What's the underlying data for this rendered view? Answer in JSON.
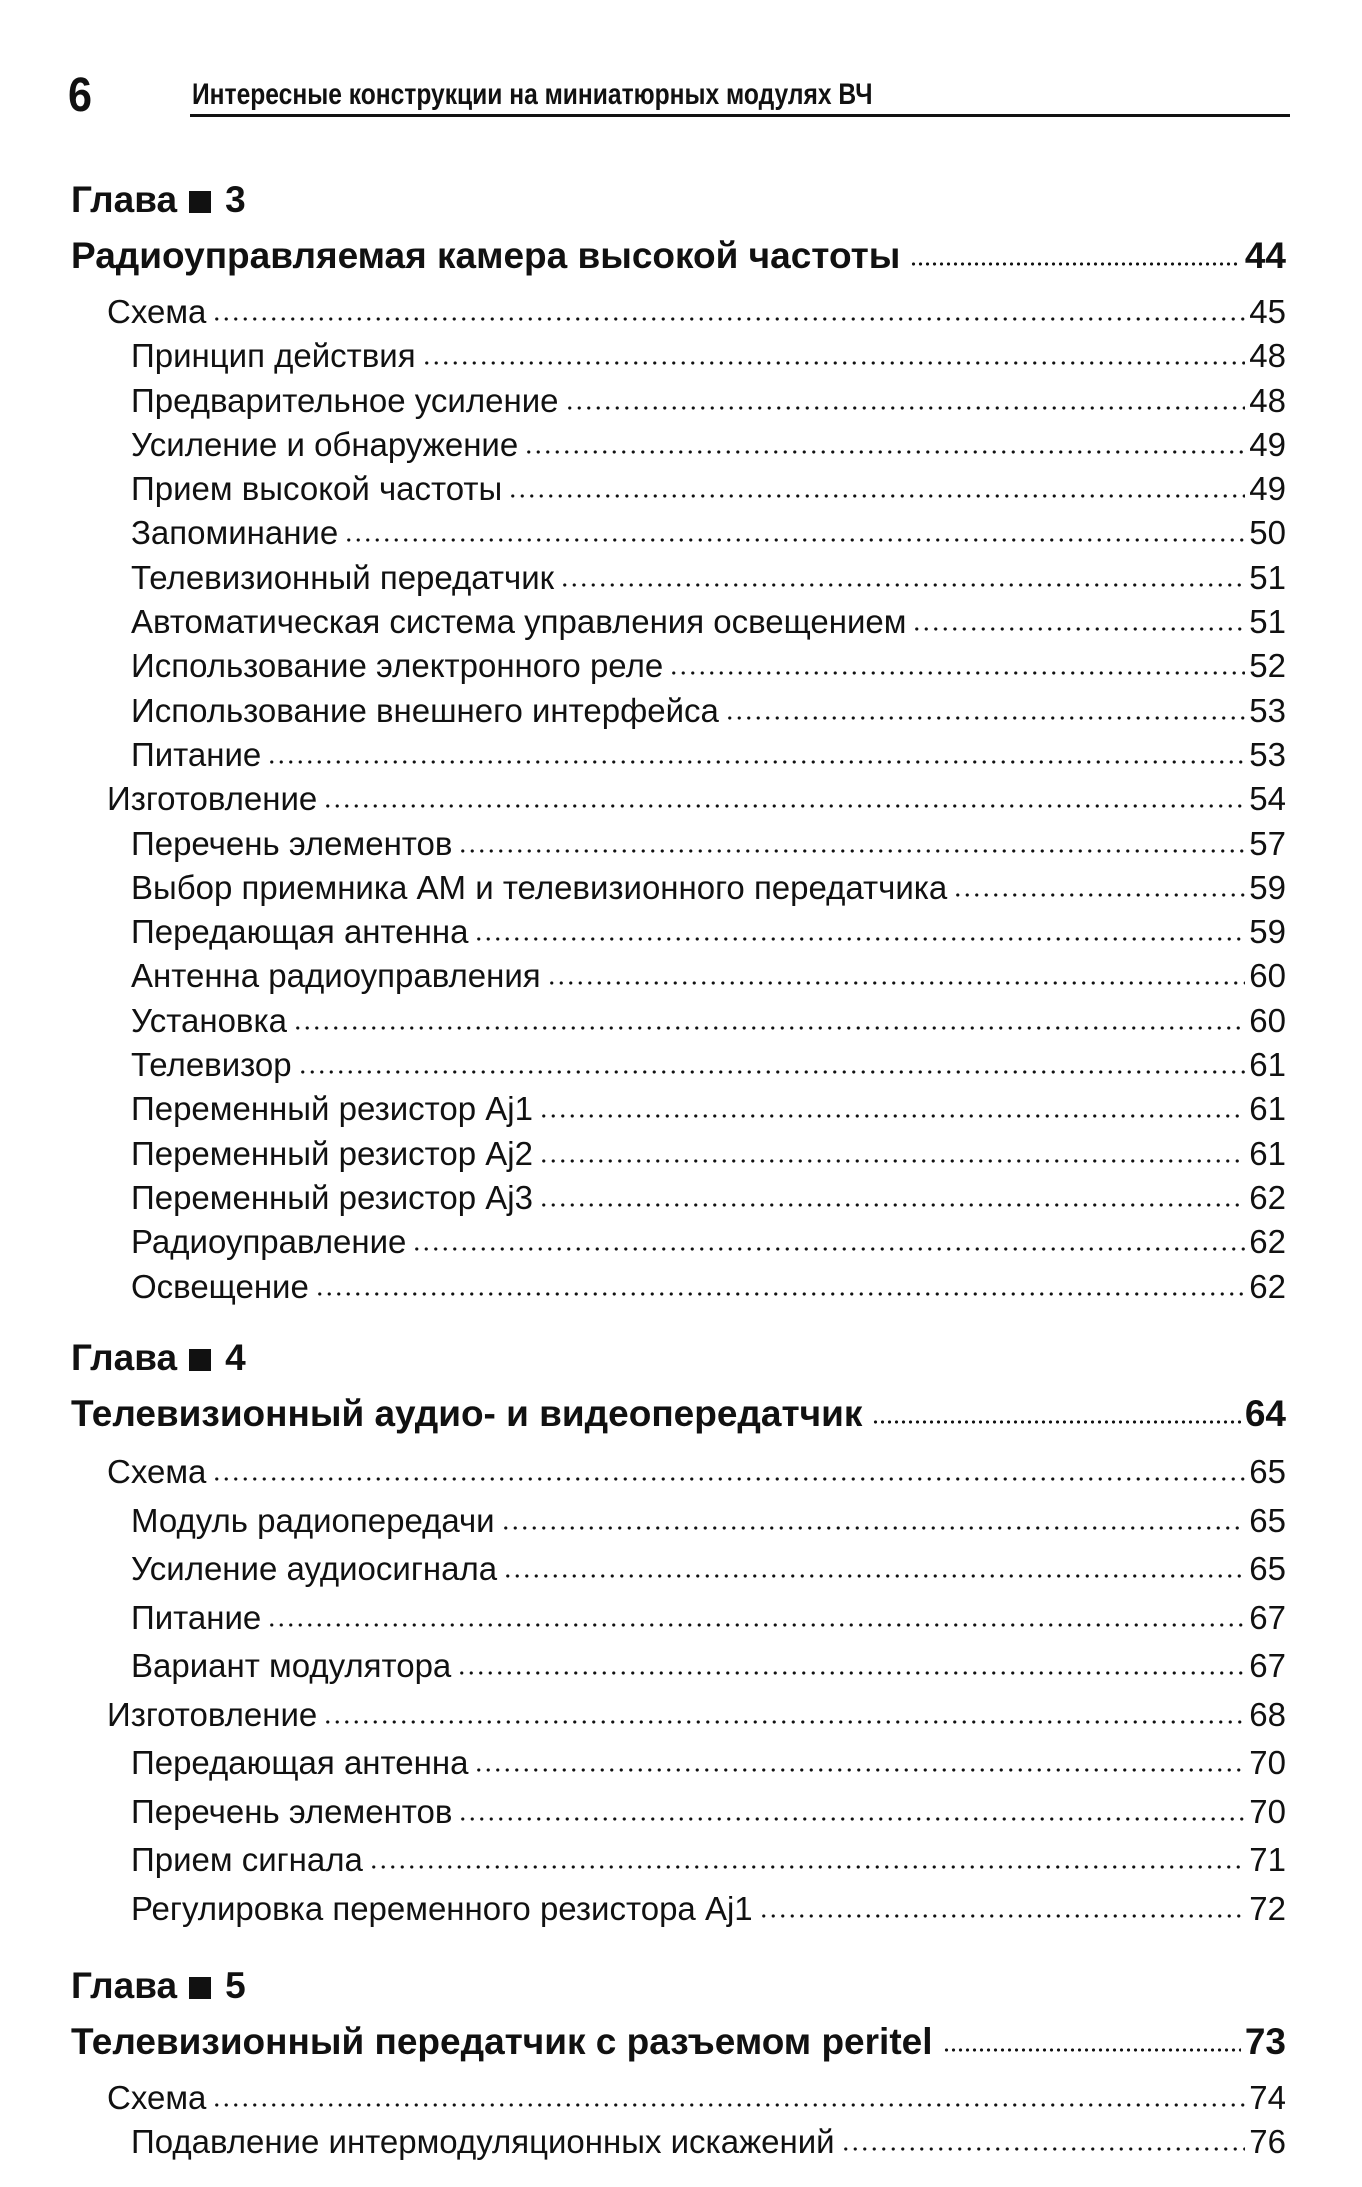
{
  "header": {
    "page_number": "6",
    "running_title": "Интересные конструкции на миниатюрных модулях ВЧ"
  },
  "chapters": [
    {
      "label": "Глава",
      "number": "3",
      "title": "Радиоуправляемая камера высокой частоты",
      "page": "44",
      "entries": [
        {
          "level": 1,
          "text": "Схема",
          "page": "45"
        },
        {
          "level": 2,
          "text": "Принцип действия",
          "page": "48"
        },
        {
          "level": 2,
          "text": "Предварительное усиление",
          "page": "48"
        },
        {
          "level": 2,
          "text": "Усиление и обнаружение",
          "page": "49"
        },
        {
          "level": 2,
          "text": "Прием высокой частоты",
          "page": "49"
        },
        {
          "level": 2,
          "text": "Запоминание",
          "page": "50"
        },
        {
          "level": 2,
          "text": "Телевизионный передатчик",
          "page": "51"
        },
        {
          "level": 2,
          "text": "Автоматическая система управления освещением",
          "page": "51"
        },
        {
          "level": 2,
          "text": "Использование электронного реле",
          "page": "52"
        },
        {
          "level": 2,
          "text": "Использование внешнего интерфейса",
          "page": "53"
        },
        {
          "level": 2,
          "text": "Питание",
          "page": "53"
        },
        {
          "level": 1,
          "text": "Изготовление",
          "page": "54"
        },
        {
          "level": 2,
          "text": "Перечень элементов",
          "page": "57"
        },
        {
          "level": 2,
          "text": "Выбор приемника АМ и телевизионного передатчика",
          "page": "59"
        },
        {
          "level": 2,
          "text": "Передающая антенна",
          "page": "59"
        },
        {
          "level": 2,
          "text": "Антенна радиоуправления",
          "page": "60"
        },
        {
          "level": 2,
          "text": "Установка",
          "page": "60"
        },
        {
          "level": 2,
          "text": "Телевизор",
          "page": "61"
        },
        {
          "level": 2,
          "text": "Переменный резистор Aj1",
          "page": "61"
        },
        {
          "level": 2,
          "text": "Переменный резистор Aj2",
          "page": "61"
        },
        {
          "level": 2,
          "text": "Переменный резистор Aj3",
          "page": "62"
        },
        {
          "level": 2,
          "text": "Радиоуправление",
          "page": "62"
        },
        {
          "level": 2,
          "text": "Освещение",
          "page": "62"
        }
      ]
    },
    {
      "label": "Глава",
      "number": "4",
      "title": "Телевизионный аудио- и видеопередатчик",
      "page": "64",
      "entries": [
        {
          "level": 1,
          "text": "Схема",
          "page": "65"
        },
        {
          "level": 2,
          "text": "Модуль радиопередачи",
          "page": "65"
        },
        {
          "level": 2,
          "text": "Усиление аудиосигнала",
          "page": "65"
        },
        {
          "level": 2,
          "text": "Питание",
          "page": "67"
        },
        {
          "level": 2,
          "text": "Вариант модулятора",
          "page": "67"
        },
        {
          "level": 1,
          "text": "Изготовление",
          "page": "68"
        },
        {
          "level": 2,
          "text": "Передающая антенна",
          "page": "70"
        },
        {
          "level": 2,
          "text": "Перечень элементов",
          "page": "70"
        },
        {
          "level": 2,
          "text": "Прием сигнала",
          "page": "71"
        },
        {
          "level": 2,
          "text": "Регулировка переменного резистора Aj1",
          "page": "72"
        }
      ]
    },
    {
      "label": "Глава",
      "number": "5",
      "title": "Телевизионный передатчик с разъемом peritel",
      "page": "73",
      "entries": [
        {
          "level": 1,
          "text": "Схема",
          "page": "74"
        },
        {
          "level": 2,
          "text": "Подавление интермодуляционных искажений",
          "page": "76"
        }
      ]
    }
  ]
}
